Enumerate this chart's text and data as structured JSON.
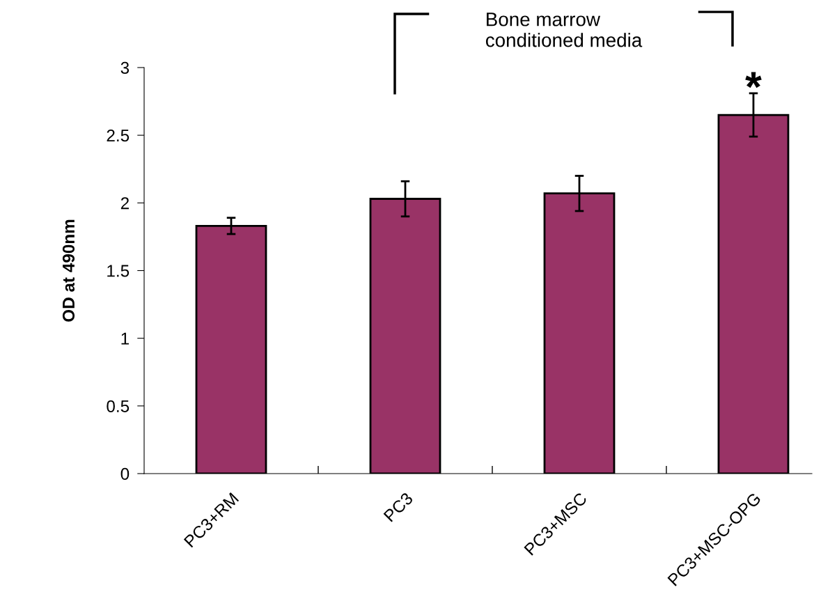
{
  "chart_data": {
    "type": "bar",
    "ylabel": "OD at 490nm",
    "categories": [
      "PC3+RM",
      "PC3",
      "PC3+MSC",
      "PC3+MSC-OPG"
    ],
    "values": [
      1.83,
      2.03,
      2.07,
      2.65
    ],
    "errors": [
      0.06,
      0.13,
      0.13,
      0.16
    ],
    "color": "#993366",
    "ylim": [
      0,
      3
    ],
    "yticks": [
      0,
      0.5,
      1,
      1.5,
      2,
      2.5,
      3
    ],
    "grid": false,
    "annotations": [
      "Bone marrow conditioned media",
      "*"
    ]
  }
}
